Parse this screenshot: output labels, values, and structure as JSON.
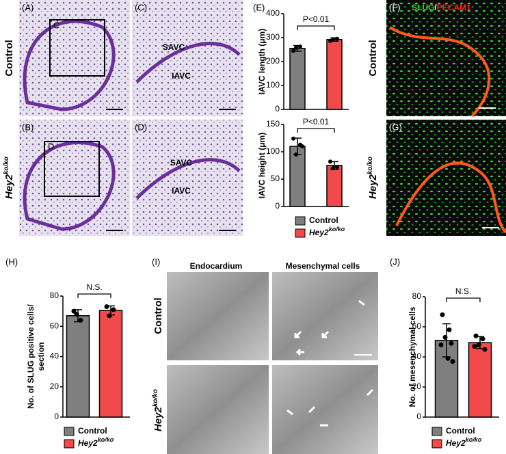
{
  "panels": {
    "A": "(A)",
    "B": "(B)",
    "C": "(C)",
    "D": "(D)",
    "E": "(E)",
    "F": "(F)",
    "G": "(G)",
    "H": "(H)",
    "I": "(I)",
    "J": "(J)",
    "box_C": "C",
    "box_D": "D",
    "savc": "SAVC",
    "iavc": "IAVC",
    "row_control": "Control",
    "row_mutant": "Hey2",
    "row_mutant_sup": "ko/ko",
    "slug": "SLUG",
    "slash": "/",
    "pecam": "PECAM1",
    "endocardium": "Endocardium",
    "mesenchymal": "Mesenchymal cells"
  },
  "chart_data": [
    {
      "type": "bar",
      "ylabel": "IAVC length (μm)",
      "annotation": "P<0.01",
      "ylim": [
        0,
        400
      ],
      "yticks": [
        0,
        100,
        200,
        300,
        400
      ],
      "legend": false,
      "series": [
        {
          "name": "Control",
          "color": "#7f7f7f",
          "values": [
            255
          ],
          "errors": [
            12
          ],
          "points": [
            245,
            262,
            258
          ]
        },
        {
          "name": "Hey2",
          "name_sup": "ko/ko",
          "color": "#f24a4a",
          "values": [
            292
          ],
          "errors": [
            7
          ],
          "points": [
            286,
            295,
            293
          ]
        }
      ]
    },
    {
      "type": "bar",
      "ylabel": "IAVC height (μm)",
      "annotation": "P<0.01",
      "ylim": [
        0,
        150
      ],
      "yticks": [
        0,
        50,
        100,
        150
      ],
      "legend": true,
      "series": [
        {
          "name": "Control",
          "color": "#7f7f7f",
          "values": [
            110
          ],
          "errors": [
            15
          ],
          "points": [
            124,
            113,
            95,
            110
          ]
        },
        {
          "name": "Hey2",
          "name_sup": "ko/ko",
          "color": "#f24a4a",
          "values": [
            75
          ],
          "errors": [
            7
          ],
          "points": [
            82,
            72,
            70
          ]
        }
      ]
    },
    {
      "type": "bar",
      "ylabel": [
        "No. of SLUG positive cells/",
        "section"
      ],
      "annotation": "N.S.",
      "ylim": [
        0,
        80
      ],
      "yticks": [
        0,
        20,
        40,
        60,
        80
      ],
      "legend": true,
      "series": [
        {
          "name": "Control",
          "color": "#7f7f7f",
          "values": [
            67
          ],
          "errors": [
            4
          ],
          "points": [
            70,
            64,
            68
          ]
        },
        {
          "name": "Hey2",
          "name_sup": "ko/ko",
          "color": "#f24a4a",
          "values": [
            70.5
          ],
          "errors": [
            3
          ],
          "points": [
            73,
            71,
            67
          ]
        }
      ]
    },
    {
      "type": "bar",
      "ylabel": "No. of mesenchymal cells",
      "annotation": "N.S.",
      "ylim": [
        0,
        80
      ],
      "yticks": [
        0,
        20,
        40,
        60,
        80
      ],
      "legend": true,
      "series": [
        {
          "name": "Control",
          "color": "#7f7f7f",
          "values": [
            51
          ],
          "errors": [
            11
          ],
          "points": [
            68,
            58,
            53,
            49,
            48,
            39,
            37
          ]
        },
        {
          "name": "Hey2",
          "name_sup": "ko/ko",
          "color": "#f24a4a",
          "values": [
            49.5
          ],
          "errors": [
            4
          ],
          "points": [
            54,
            52,
            48,
            45,
            47
          ]
        }
      ]
    }
  ]
}
